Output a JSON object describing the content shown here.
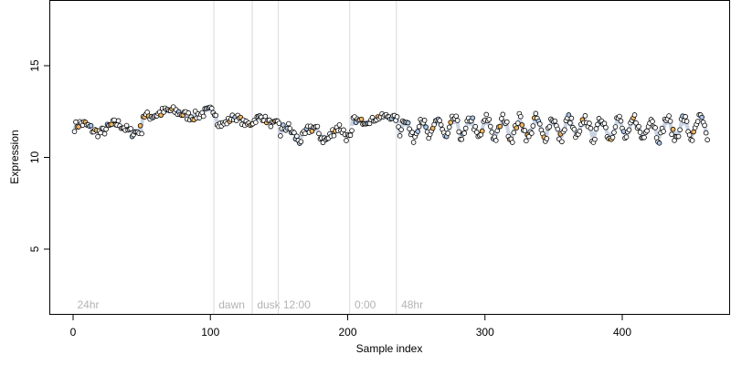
{
  "chart_data": {
    "type": "scatter",
    "xlabel": "Sample index",
    "ylabel": "Expression",
    "xlim": [
      -10,
      480
    ],
    "ylim": [
      1.5,
      19.0
    ],
    "xticks": [
      0,
      100,
      200,
      300,
      400
    ],
    "yticks": [
      5,
      10,
      15
    ],
    "grid": false,
    "colors": {
      "default": "#ffffff",
      "orange": "#f5b55b",
      "blue": "#a9c6ec",
      "band": "#bcc8dc",
      "phase_line": "#d9d9d9",
      "phase_label": "#b3b3b3"
    },
    "phase_markers": [
      {
        "x": 1,
        "label": "24hr"
      },
      {
        "x": 104,
        "label": "dawn"
      },
      {
        "x": 132,
        "label": "dusk"
      },
      {
        "x": 151,
        "label": "12:00"
      },
      {
        "x": 203,
        "label": "0:00"
      },
      {
        "x": 237,
        "label": "48hr"
      }
    ],
    "segments": [
      {
        "x": [
          1,
          50
        ],
        "level": 11.6
      },
      {
        "x": [
          50,
          104
        ],
        "level": 12.4
      },
      {
        "x": [
          104,
          150
        ],
        "level": 12.0
      },
      {
        "x": [
          150,
          203
        ],
        "level": 11.3
      },
      {
        "x": [
          203,
          237
        ],
        "level": 12.1
      },
      {
        "x": [
          237,
          462
        ],
        "level": 11.6
      }
    ],
    "orange_x": [
      4,
      9,
      17,
      28,
      49,
      52,
      55,
      64,
      72,
      80,
      88,
      114,
      122,
      130,
      141,
      147,
      174,
      191,
      210,
      222,
      262,
      275,
      298,
      311,
      318,
      323,
      327,
      331,
      336,
      343,
      355,
      371,
      392,
      408,
      437,
      452
    ],
    "blue_x": [
      13,
      25,
      36,
      43,
      58,
      77,
      99,
      118,
      136,
      153,
      156,
      159,
      162,
      165,
      170,
      185,
      206,
      215,
      232,
      244,
      251,
      257,
      266,
      272,
      284,
      291,
      306,
      339,
      361,
      384,
      401,
      414,
      427,
      444,
      458
    ],
    "n_points": 462
  }
}
